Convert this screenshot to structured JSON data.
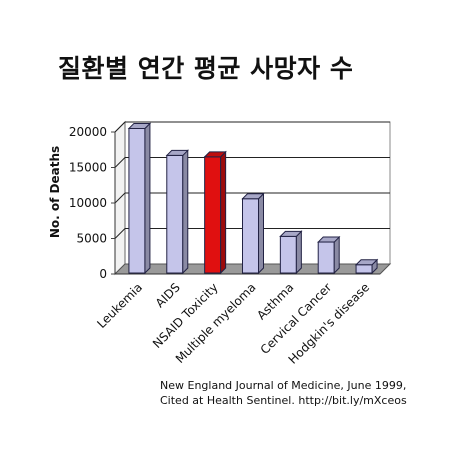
{
  "title": "질환별 연간 평균 사망자 수",
  "chart_data": {
    "type": "bar",
    "title": "질환별 연간 평균 사망자 수",
    "xlabel": "",
    "ylabel": "No. of Deaths",
    "ylim": [
      0,
      20000
    ],
    "yticks": [
      0,
      5000,
      10000,
      15000,
      20000
    ],
    "grid": true,
    "categories": [
      "Leukemia",
      "AIDS",
      "NSAID Toxicity",
      "Multiple myeloma",
      "Asthma",
      "Cervical Cancer",
      "Hodgkin's disease"
    ],
    "values": [
      20500,
      16700,
      16500,
      10600,
      5300,
      4500,
      1300
    ],
    "colors": [
      "#c5c5ea",
      "#c5c5ea",
      "#e01010",
      "#c5c5ea",
      "#c5c5ea",
      "#c5c5ea",
      "#c5c5ea"
    ]
  },
  "source": {
    "line1": "New England Journal of Medicine, June 1999,",
    "line2": "Cited at Health Sentinel. http://bit.ly/mXceos"
  }
}
